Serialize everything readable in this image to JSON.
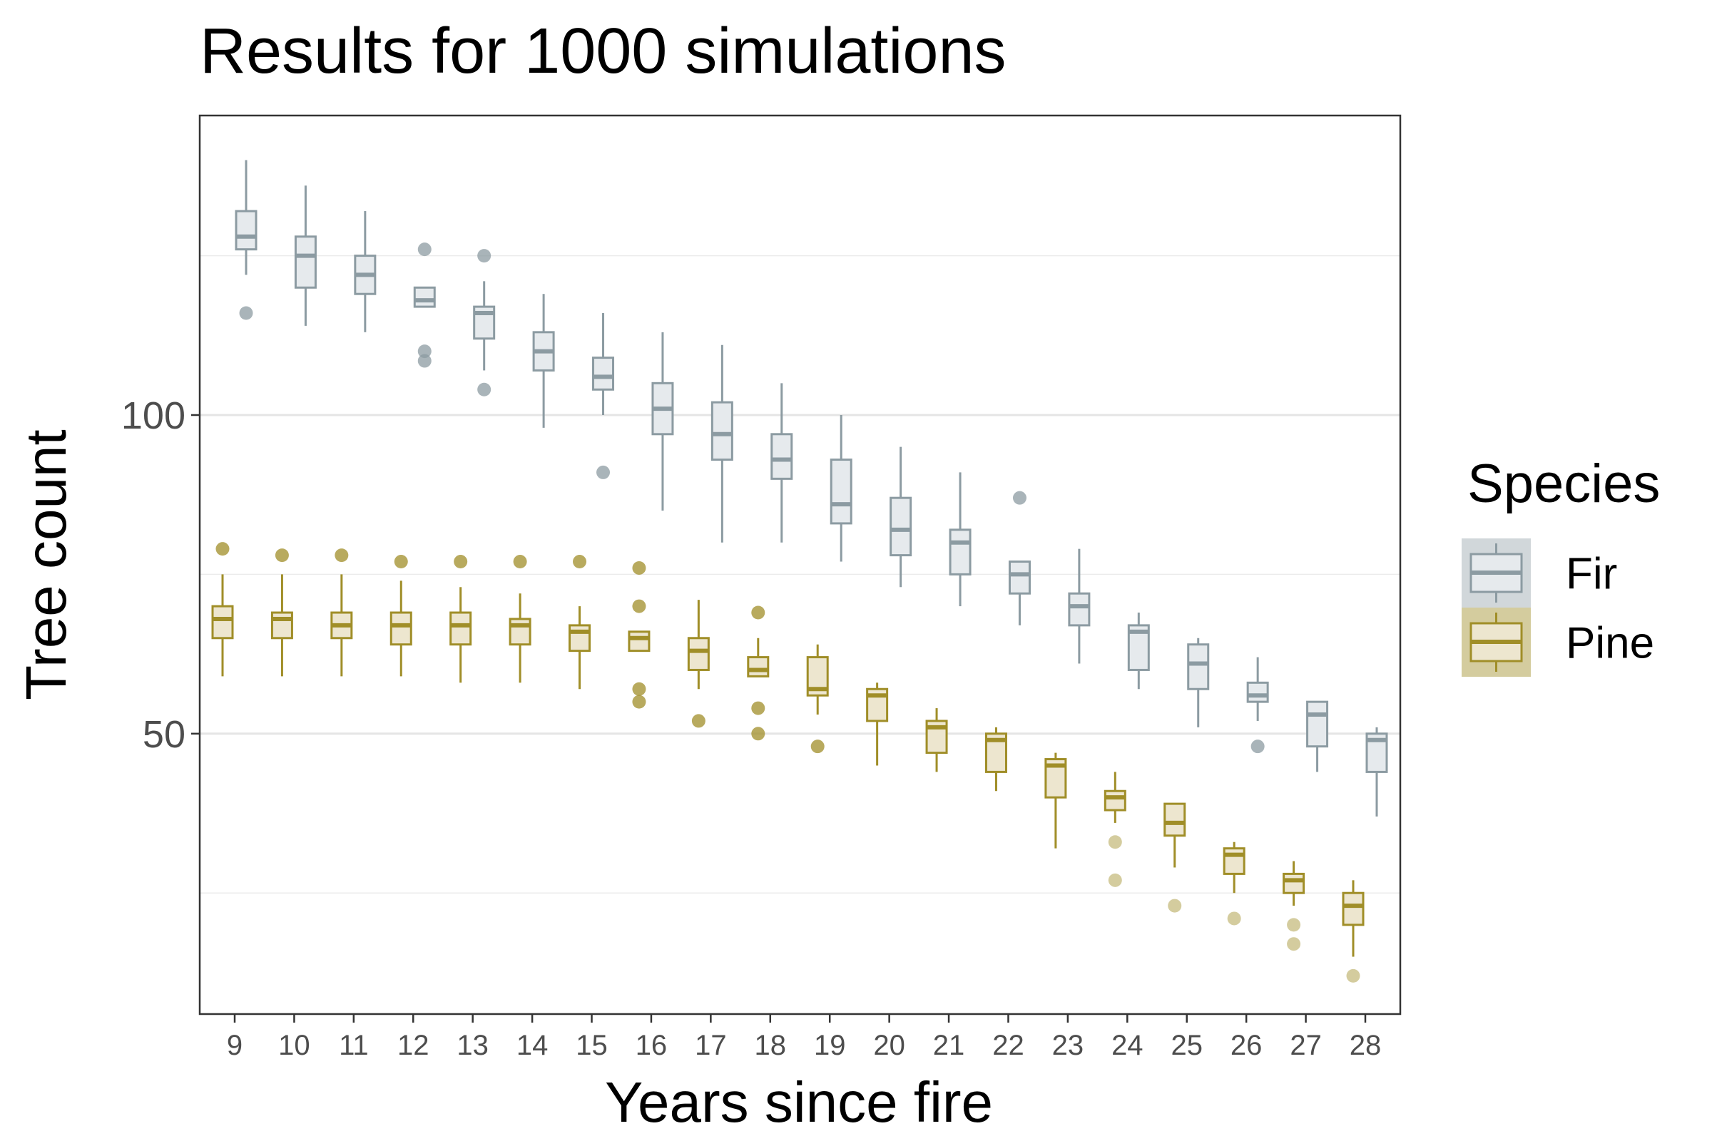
{
  "chart_data": {
    "type": "boxplot",
    "title": "Results for 1000 simulations",
    "xlabel": "Years since fire",
    "ylabel": "Tree count",
    "categories": [
      "9",
      "10",
      "11",
      "12",
      "13",
      "14",
      "15",
      "16",
      "17",
      "18",
      "19",
      "20",
      "21",
      "22",
      "23",
      "24",
      "25",
      "26",
      "27",
      "28"
    ],
    "ylim": [
      6,
      147
    ],
    "yticks": [
      50,
      100
    ],
    "grid": "horizontal-major-minor",
    "legend": {
      "title": "Species",
      "position": "right"
    },
    "series": [
      {
        "name": "Fir",
        "color": "#8c9ba2",
        "fill": "#e6eaed",
        "boxes": [
          {
            "min": 122,
            "q1": 126,
            "median": 128,
            "q3": 132,
            "max": 140,
            "outliers": [
              116
            ]
          },
          {
            "min": 114,
            "q1": 120,
            "median": 125,
            "q3": 128,
            "max": 136,
            "outliers": []
          },
          {
            "min": 113,
            "q1": 119,
            "median": 122,
            "q3": 125,
            "max": 132,
            "outliers": []
          },
          {
            "min": 117,
            "q1": 117,
            "median": 118,
            "q3": 120,
            "max": 120,
            "outliers": [
              126,
              110,
              108.5
            ]
          },
          {
            "min": 107,
            "q1": 112,
            "median": 116,
            "q3": 117,
            "max": 121,
            "outliers": [
              125,
              104
            ]
          },
          {
            "min": 98,
            "q1": 107,
            "median": 110,
            "q3": 113,
            "max": 119,
            "outliers": []
          },
          {
            "min": 100,
            "q1": 104,
            "median": 106,
            "q3": 109,
            "max": 116,
            "outliers": [
              91
            ]
          },
          {
            "min": 85,
            "q1": 97,
            "median": 101,
            "q3": 105,
            "max": 113,
            "outliers": []
          },
          {
            "min": 80,
            "q1": 93,
            "median": 97,
            "q3": 102,
            "max": 111,
            "outliers": []
          },
          {
            "min": 80,
            "q1": 90,
            "median": 93,
            "q3": 97,
            "max": 105,
            "outliers": []
          },
          {
            "min": 77,
            "q1": 83,
            "median": 86,
            "q3": 93,
            "max": 100,
            "outliers": []
          },
          {
            "min": 73,
            "q1": 78,
            "median": 82,
            "q3": 87,
            "max": 95,
            "outliers": []
          },
          {
            "min": 70,
            "q1": 75,
            "median": 80,
            "q3": 82,
            "max": 91,
            "outliers": []
          },
          {
            "min": 67,
            "q1": 72,
            "median": 75,
            "q3": 77,
            "max": 77,
            "outliers": [
              87
            ]
          },
          {
            "min": 61,
            "q1": 67,
            "median": 70,
            "q3": 72,
            "max": 79,
            "outliers": []
          },
          {
            "min": 57,
            "q1": 60,
            "median": 66,
            "q3": 67,
            "max": 69,
            "outliers": []
          },
          {
            "min": 51,
            "q1": 57,
            "median": 61,
            "q3": 64,
            "max": 65,
            "outliers": []
          },
          {
            "min": 52,
            "q1": 55,
            "median": 56,
            "q3": 58,
            "max": 62,
            "outliers": [
              48
            ]
          },
          {
            "min": 44,
            "q1": 48,
            "median": 53,
            "q3": 55,
            "max": 55,
            "outliers": []
          },
          {
            "min": 37,
            "q1": 44,
            "median": 49,
            "q3": 50,
            "max": 51,
            "outliers": []
          }
        ]
      },
      {
        "name": "Pine",
        "color": "#a08e28",
        "fill": "#ede6cf",
        "boxes": [
          {
            "min": 59,
            "q1": 65,
            "median": 68,
            "q3": 70,
            "max": 75,
            "outliers": [
              79
            ]
          },
          {
            "min": 59,
            "q1": 65,
            "median": 68,
            "q3": 69,
            "max": 75,
            "outliers": [
              78
            ]
          },
          {
            "min": 59,
            "q1": 65,
            "median": 67,
            "q3": 69,
            "max": 75,
            "outliers": [
              78
            ]
          },
          {
            "min": 59,
            "q1": 64,
            "median": 67,
            "q3": 69,
            "max": 74,
            "outliers": [
              77
            ]
          },
          {
            "min": 58,
            "q1": 64,
            "median": 67,
            "q3": 69,
            "max": 73,
            "outliers": [
              77
            ]
          },
          {
            "min": 58,
            "q1": 64,
            "median": 67,
            "q3": 68,
            "max": 72,
            "outliers": [
              77
            ]
          },
          {
            "min": 57,
            "q1": 63,
            "median": 66,
            "q3": 67,
            "max": 70,
            "outliers": [
              77
            ]
          },
          {
            "min": 63,
            "q1": 63,
            "median": 65,
            "q3": 66,
            "max": 66,
            "outliers": [
              76,
              70,
              57,
              55
            ]
          },
          {
            "min": 57,
            "q1": 60,
            "median": 63,
            "q3": 65,
            "max": 71,
            "outliers": [
              52
            ]
          },
          {
            "min": 59,
            "q1": 59,
            "median": 60,
            "q3": 62,
            "max": 65,
            "outliers": [
              69,
              54,
              50
            ]
          },
          {
            "min": 53,
            "q1": 56,
            "median": 57,
            "q3": 62,
            "max": 64,
            "outliers": [
              48
            ]
          },
          {
            "min": 45,
            "q1": 52,
            "median": 56,
            "q3": 57,
            "max": 58,
            "outliers": []
          },
          {
            "min": 44,
            "q1": 47,
            "median": 51,
            "q3": 52,
            "max": 54,
            "outliers": []
          },
          {
            "min": 41,
            "q1": 44,
            "median": 49,
            "q3": 50,
            "max": 51,
            "outliers": []
          },
          {
            "min": 32,
            "q1": 40,
            "median": 45,
            "q3": 46,
            "max": 47,
            "outliers": []
          },
          {
            "min": 36,
            "q1": 38,
            "median": 40,
            "q3": 41,
            "max": 44,
            "outliers": [
              33,
              27
            ]
          },
          {
            "min": 29,
            "q1": 34,
            "median": 36,
            "q3": 39,
            "max": 39,
            "outliers": [
              23
            ]
          },
          {
            "min": 25,
            "q1": 28,
            "median": 31,
            "q3": 32,
            "max": 33,
            "outliers": [
              21
            ]
          },
          {
            "min": 23,
            "q1": 25,
            "median": 27,
            "q3": 28,
            "max": 30,
            "outliers": [
              20,
              17
            ]
          },
          {
            "min": 15,
            "q1": 20,
            "median": 23,
            "q3": 25,
            "max": 27,
            "outliers": [
              12
            ]
          }
        ]
      }
    ]
  }
}
